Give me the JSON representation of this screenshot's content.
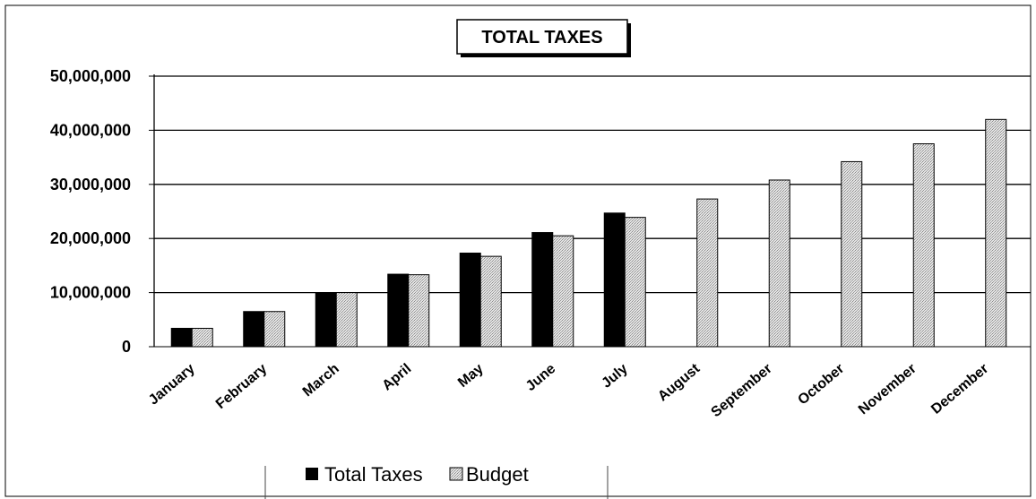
{
  "chart_data": {
    "type": "bar",
    "title": "TOTAL TAXES",
    "xlabel": "",
    "ylabel": "",
    "ylim": [
      0,
      50000000
    ],
    "yticks": [
      0,
      10000000,
      20000000,
      30000000,
      40000000,
      50000000
    ],
    "ytick_labels": [
      "0",
      "10,000,000",
      "20,000,000",
      "30,000,000",
      "40,000,000",
      "50,000,000"
    ],
    "categories": [
      "January",
      "February",
      "March",
      "April",
      "May",
      "June",
      "July",
      "August",
      "September",
      "October",
      "November",
      "December"
    ],
    "series": [
      {
        "name": "Total Taxes",
        "color": "#000000",
        "pattern": "solid",
        "values": [
          3400000,
          6500000,
          10000000,
          13400000,
          17300000,
          21100000,
          24700000,
          null,
          null,
          null,
          null,
          null
        ]
      },
      {
        "name": "Budget",
        "color": "#c8c8c8",
        "pattern": "dotted",
        "values": [
          3400000,
          6500000,
          10000000,
          13300000,
          16700000,
          20500000,
          23900000,
          27300000,
          30800000,
          34200000,
          37500000,
          42000000
        ]
      }
    ],
    "grid": true,
    "legend_position": "bottom"
  }
}
